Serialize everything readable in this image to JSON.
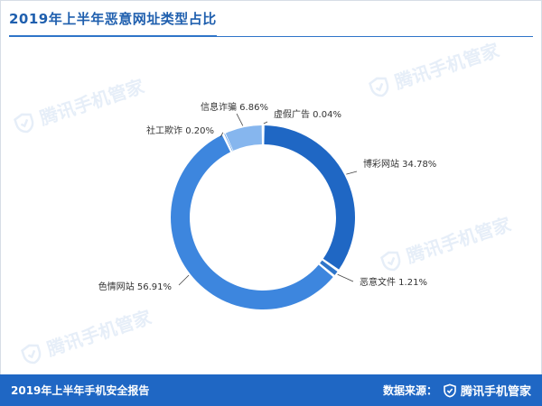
{
  "header": {
    "title": "2019年上半年恶意网址类型占比"
  },
  "footer": {
    "report": "2019年上半年手机安全报告",
    "source_label": "数据来源：",
    "brand": "腾讯手机管家"
  },
  "watermark": {
    "text": "腾讯手机管家"
  },
  "colors": {
    "accent": "#1f67c4",
    "title": "#1f5fae"
  },
  "chart_data": {
    "type": "pie",
    "donut": true,
    "title": "2019年上半年恶意网址类型占比",
    "slices": [
      {
        "label": "博彩网站 34.78%",
        "name": "博彩网站",
        "value": 34.78,
        "color": "#1f67c4"
      },
      {
        "label": "恶意文件 1.21%",
        "name": "恶意文件",
        "value": 1.21,
        "color": "#2f75c9"
      },
      {
        "label": "色情网站 56.91%",
        "name": "色情网站",
        "value": 56.91,
        "color": "#3d86de"
      },
      {
        "label": "社工欺诈 0.20%",
        "name": "社工欺诈",
        "value": 0.2,
        "color": "#4a90e2"
      },
      {
        "label": "信息诈骗 6.86%",
        "name": "信息诈骗",
        "value": 6.86,
        "color": "#86b6ee"
      },
      {
        "label": "虚假广告 0.04%",
        "name": "虚假广告",
        "value": 0.04,
        "color": "#a9cdf5"
      }
    ]
  }
}
